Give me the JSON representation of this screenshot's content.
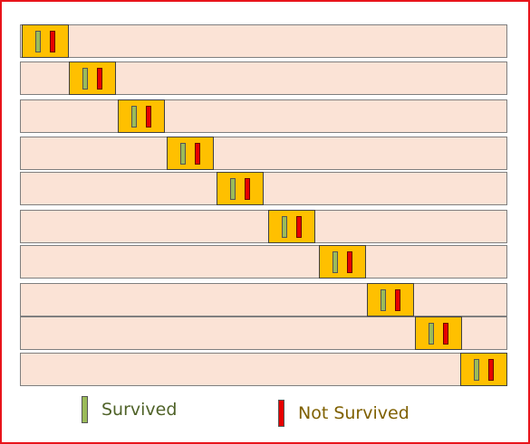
{
  "colors": {
    "frame_border": "#e8141b",
    "row_fill": "#fbe3d6",
    "fold_fill": "#ffc000",
    "survived": "#9bbb59",
    "not_survived": "#e60000",
    "survived_text": "#4f6228",
    "not_survived_text": "#7f6000"
  },
  "legend": {
    "survived": {
      "label": "Survived",
      "icon": "survived-swatch"
    },
    "not_survived": {
      "label": "Not Survived",
      "icon": "not-survived-swatch"
    }
  }
}
